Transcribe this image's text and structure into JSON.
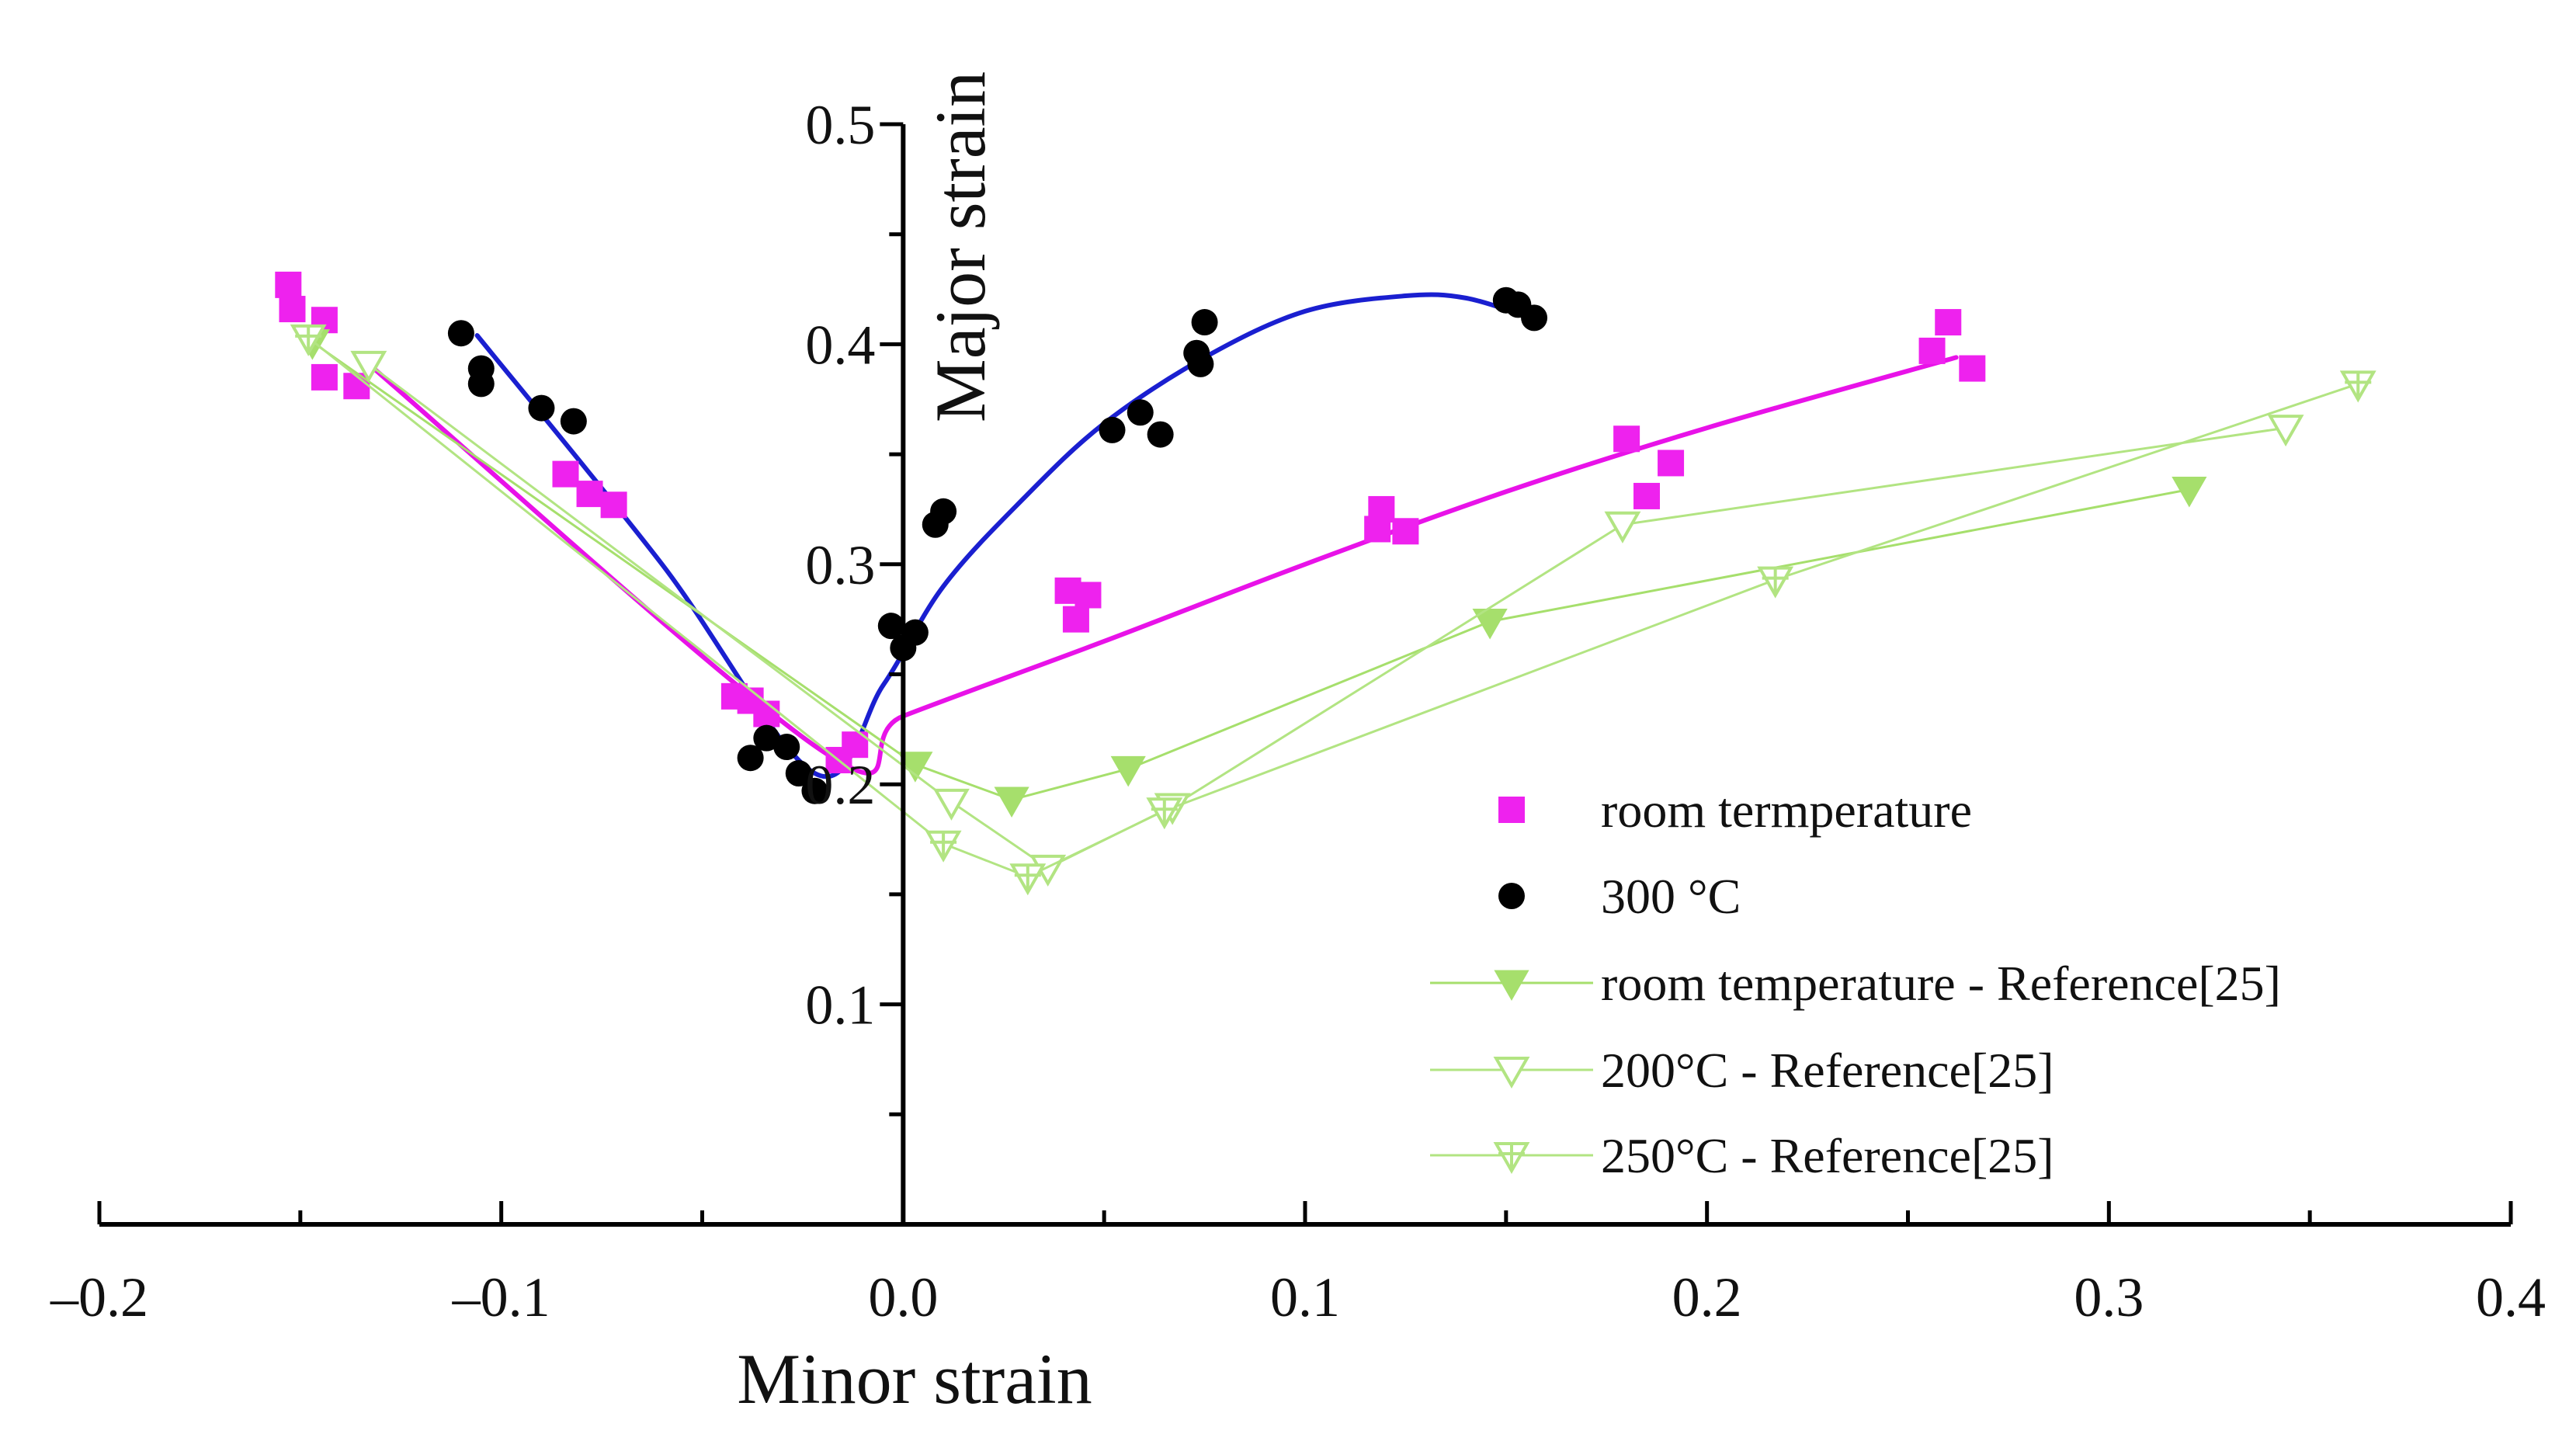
{
  "chart_data": {
    "type": "scatter",
    "title": "",
    "xlabel": "Minor strain",
    "ylabel": "Major strain",
    "xlim": [
      -0.2,
      0.4
    ],
    "ylim": [
      0.0,
      0.5
    ],
    "x_ticks": [
      "-0.2",
      "-0.1",
      "0.0",
      "0.1",
      "0.2",
      "0.3",
      "0.4"
    ],
    "x_tick_values": [
      -0.2,
      -0.1,
      0.0,
      0.1,
      0.2,
      0.3,
      0.4
    ],
    "y_ticks": [
      "0.1",
      "0.2",
      "0.3",
      "0.4",
      "0.5"
    ],
    "y_tick_values": [
      0.1,
      0.2,
      0.3,
      0.4,
      0.5
    ],
    "grid": false,
    "legend_position": "lower-right",
    "series": [
      {
        "name": "room termperature",
        "marker": "square",
        "color": "#ee22ee",
        "points": [
          [
            -0.153,
            0.427
          ],
          [
            -0.152,
            0.416
          ],
          [
            -0.144,
            0.411
          ],
          [
            -0.144,
            0.385
          ],
          [
            -0.136,
            0.381
          ],
          [
            -0.084,
            0.341
          ],
          [
            -0.078,
            0.332
          ],
          [
            -0.072,
            0.327
          ],
          [
            -0.042,
            0.24
          ],
          [
            -0.038,
            0.238
          ],
          [
            -0.034,
            0.232
          ],
          [
            -0.016,
            0.211
          ],
          [
            -0.012,
            0.218
          ],
          [
            0.041,
            0.288
          ],
          [
            0.043,
            0.275
          ],
          [
            0.046,
            0.286
          ],
          [
            0.118,
            0.316
          ],
          [
            0.119,
            0.325
          ],
          [
            0.125,
            0.315
          ],
          [
            0.18,
            0.357
          ],
          [
            0.185,
            0.331
          ],
          [
            0.191,
            0.346
          ],
          [
            0.256,
            0.397
          ],
          [
            0.26,
            0.41
          ],
          [
            0.266,
            0.389
          ]
        ]
      },
      {
        "name": "300 °C",
        "marker": "circle",
        "color": "#000000",
        "points": [
          [
            -0.11,
            0.405
          ],
          [
            -0.105,
            0.389
          ],
          [
            -0.105,
            0.382
          ],
          [
            -0.09,
            0.371
          ],
          [
            -0.082,
            0.365
          ],
          [
            -0.038,
            0.212
          ],
          [
            -0.034,
            0.221
          ],
          [
            -0.029,
            0.217
          ],
          [
            -0.026,
            0.205
          ],
          [
            -0.022,
            0.197
          ],
          [
            -0.003,
            0.272
          ],
          [
            0.0,
            0.262
          ],
          [
            0.003,
            0.269
          ],
          [
            0.008,
            0.318
          ],
          [
            0.01,
            0.324
          ],
          [
            0.052,
            0.361
          ],
          [
            0.059,
            0.369
          ],
          [
            0.064,
            0.359
          ],
          [
            0.073,
            0.396
          ],
          [
            0.074,
            0.391
          ],
          [
            0.075,
            0.41
          ],
          [
            0.15,
            0.42
          ],
          [
            0.153,
            0.418
          ],
          [
            0.157,
            0.412
          ]
        ]
      },
      {
        "name": "room temperature - Reference[25]",
        "marker": "triangle-down-filled",
        "color": "#a6df6c",
        "points": [
          [
            -0.147,
            0.401
          ],
          [
            0.003,
            0.209
          ],
          [
            0.027,
            0.193
          ],
          [
            0.056,
            0.207
          ],
          [
            0.146,
            0.274
          ],
          [
            0.32,
            0.334
          ]
        ]
      },
      {
        "name": "200°C - Reference[25]",
        "marker": "triangle-down-open",
        "color": "#b2e482",
        "points": [
          [
            -0.133,
            0.391
          ],
          [
            0.012,
            0.192
          ],
          [
            0.036,
            0.162
          ],
          [
            0.067,
            0.19
          ],
          [
            0.179,
            0.318
          ],
          [
            0.344,
            0.362
          ]
        ]
      },
      {
        "name": "250°C - Reference[25]",
        "marker": "triangle-down-crossed",
        "color": "#b2e482",
        "points": [
          [
            -0.148,
            0.403
          ],
          [
            0.01,
            0.173
          ],
          [
            0.031,
            0.158
          ],
          [
            0.065,
            0.188
          ],
          [
            0.217,
            0.293
          ],
          [
            0.362,
            0.382
          ]
        ]
      }
    ],
    "fits": [
      {
        "series": "room termperature",
        "color": "#e812e8",
        "points": [
          [
            -0.133,
            0.391
          ],
          [
            -0.02,
            0.215
          ],
          [
            0.0,
            0.231
          ],
          [
            0.05,
            0.265
          ],
          [
            0.1,
            0.3
          ],
          [
            0.15,
            0.333
          ],
          [
            0.2,
            0.362
          ],
          [
            0.262,
            0.394
          ]
        ]
      },
      {
        "series": "300 °C",
        "color": "#1a1fd0",
        "points": [
          [
            -0.106,
            0.404
          ],
          [
            -0.06,
            0.3
          ],
          [
            -0.022,
            0.205
          ],
          [
            -0.005,
            0.245
          ],
          [
            0.01,
            0.29
          ],
          [
            0.03,
            0.33
          ],
          [
            0.05,
            0.364
          ],
          [
            0.075,
            0.394
          ],
          [
            0.1,
            0.415
          ],
          [
            0.125,
            0.422
          ],
          [
            0.14,
            0.421
          ],
          [
            0.156,
            0.412
          ]
        ]
      }
    ]
  }
}
